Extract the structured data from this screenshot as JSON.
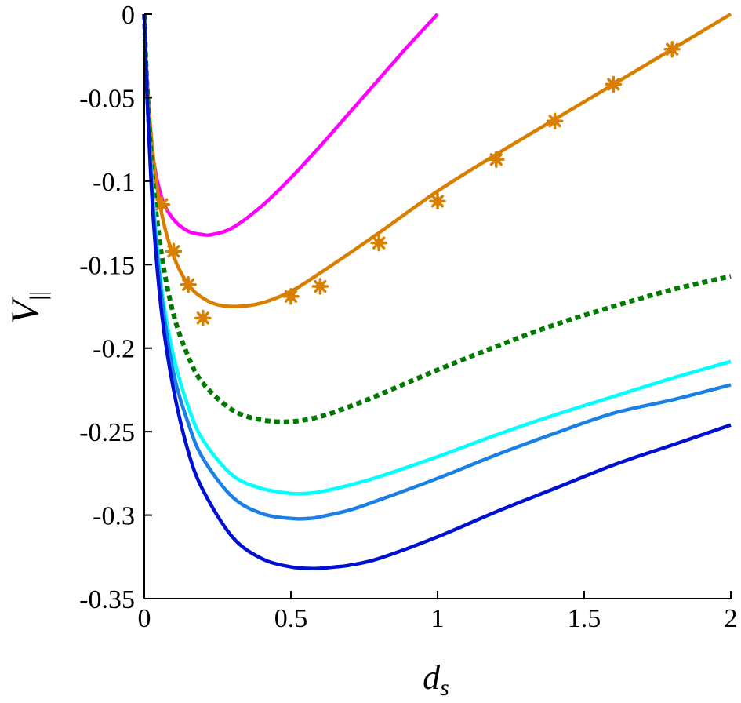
{
  "chart_data": {
    "type": "line",
    "xlabel": "d",
    "xlabel_sub": "s",
    "ylabel": "V",
    "ylabel_sub": "||",
    "xlim": [
      0,
      2
    ],
    "ylim": [
      -0.35,
      0
    ],
    "xticks": [
      0,
      0.5,
      1,
      1.5,
      2
    ],
    "yticks": [
      0,
      -0.05,
      -0.1,
      -0.15,
      -0.2,
      -0.25,
      -0.3,
      -0.35
    ],
    "xtick_labels": [
      "0",
      "0.5",
      "1",
      "1.5",
      "2"
    ],
    "ytick_labels": [
      "0",
      "-0.05",
      "-0.1",
      "-0.15",
      "-0.2",
      "-0.25",
      "-0.3",
      "-0.35"
    ],
    "grid": false,
    "series": [
      {
        "color": "#ff00ff",
        "style": "solid",
        "x": [
          0,
          0.01,
          0.03,
          0.06,
          0.1,
          0.15,
          0.2,
          0.23,
          0.3,
          0.4,
          0.5,
          0.6,
          0.7,
          0.8,
          0.9,
          1.0
        ],
        "y": [
          0,
          -0.04,
          -0.085,
          -0.11,
          -0.123,
          -0.13,
          -0.132,
          -0.132,
          -0.128,
          -0.115,
          -0.098,
          -0.079,
          -0.059,
          -0.039,
          -0.019,
          0.0
        ]
      },
      {
        "color": "#d97f00",
        "style": "solid",
        "x": [
          0,
          0.01,
          0.03,
          0.06,
          0.1,
          0.15,
          0.2,
          0.25,
          0.32,
          0.4,
          0.5,
          0.6,
          0.8,
          1.0,
          1.2,
          1.4,
          1.6,
          1.8,
          2.0
        ],
        "y": [
          0,
          -0.04,
          -0.085,
          -0.12,
          -0.145,
          -0.162,
          -0.17,
          -0.174,
          -0.175,
          -0.173,
          -0.166,
          -0.155,
          -0.131,
          -0.106,
          -0.084,
          -0.063,
          -0.042,
          -0.021,
          0.0
        ]
      },
      {
        "color": "#d97f00",
        "style": "markers",
        "x": [
          0.06,
          0.1,
          0.15,
          0.2,
          0.5,
          0.6,
          0.8,
          1.0,
          1.2,
          1.4,
          1.6,
          1.8
        ],
        "y": [
          -0.114,
          -0.142,
          -0.162,
          -0.182,
          -0.169,
          -0.163,
          -0.137,
          -0.112,
          -0.087,
          -0.064,
          -0.042,
          -0.021
        ]
      },
      {
        "color": "#007a00",
        "style": "dotted",
        "x": [
          0,
          0.01,
          0.03,
          0.06,
          0.1,
          0.15,
          0.2,
          0.3,
          0.4,
          0.5,
          0.6,
          0.7,
          0.8,
          1.0,
          1.2,
          1.4,
          1.6,
          1.8,
          2.0
        ],
        "y": [
          0,
          -0.045,
          -0.1,
          -0.145,
          -0.18,
          -0.205,
          -0.221,
          -0.237,
          -0.243,
          -0.244,
          -0.241,
          -0.235,
          -0.228,
          -0.213,
          -0.199,
          -0.186,
          -0.175,
          -0.165,
          -0.157
        ]
      },
      {
        "color": "#00ffff",
        "style": "solid",
        "x": [
          0,
          0.01,
          0.03,
          0.06,
          0.1,
          0.15,
          0.2,
          0.3,
          0.4,
          0.5,
          0.55,
          0.6,
          0.7,
          0.8,
          1.0,
          1.2,
          1.4,
          1.6,
          1.8,
          2.0
        ],
        "y": [
          0,
          -0.05,
          -0.11,
          -0.165,
          -0.205,
          -0.235,
          -0.255,
          -0.276,
          -0.284,
          -0.287,
          -0.287,
          -0.286,
          -0.282,
          -0.277,
          -0.265,
          -0.252,
          -0.24,
          -0.229,
          -0.218,
          -0.208
        ]
      },
      {
        "color": "#1a80e6",
        "style": "solid",
        "x": [
          0,
          0.01,
          0.03,
          0.06,
          0.1,
          0.15,
          0.2,
          0.3,
          0.4,
          0.5,
          0.56,
          0.6,
          0.7,
          0.8,
          1.0,
          1.2,
          1.4,
          1.6,
          1.8,
          2.0
        ],
        "y": [
          0,
          -0.05,
          -0.115,
          -0.17,
          -0.215,
          -0.245,
          -0.266,
          -0.289,
          -0.299,
          -0.302,
          -0.302,
          -0.301,
          -0.297,
          -0.291,
          -0.278,
          -0.264,
          -0.251,
          -0.239,
          -0.231,
          -0.222
        ]
      },
      {
        "color": "#0010d0",
        "style": "solid",
        "x": [
          0,
          0.01,
          0.03,
          0.06,
          0.1,
          0.15,
          0.2,
          0.3,
          0.4,
          0.5,
          0.58,
          0.65,
          0.7,
          0.8,
          1.0,
          1.2,
          1.4,
          1.6,
          1.8,
          2.0
        ],
        "y": [
          0,
          -0.05,
          -0.12,
          -0.18,
          -0.225,
          -0.262,
          -0.285,
          -0.313,
          -0.326,
          -0.331,
          -0.332,
          -0.331,
          -0.33,
          -0.326,
          -0.313,
          -0.298,
          -0.284,
          -0.27,
          -0.258,
          -0.246
        ]
      }
    ]
  }
}
